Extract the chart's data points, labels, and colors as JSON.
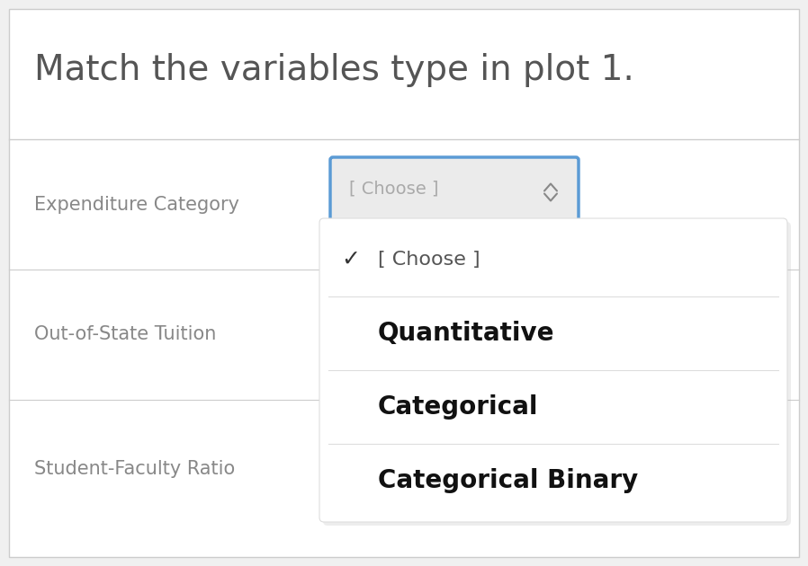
{
  "title": "Match the variables type in plot 1.",
  "title_color": "#555555",
  "title_fontsize": 28,
  "background_color": "#f0f0f0",
  "main_bg": "#ffffff",
  "rows": [
    {
      "label": "Expenditure Category",
      "has_dropdown": true,
      "dropdown_text": "[ Choose ]"
    },
    {
      "label": "Out-of-State Tuition",
      "has_dropdown": false
    },
    {
      "label": "Student-Faculty Ratio",
      "has_dropdown": false
    }
  ],
  "row_label_color": "#888888",
  "row_label_fontsize": 15,
  "dropdown_bg_color": "#ebebeb",
  "dropdown_border_color": "#5b9bd5",
  "dropdown_text_color": "#aaaaaa",
  "dropdown_arrow_color": "#888888",
  "dropdown_menu": {
    "bg_color": "#ffffff",
    "items": [
      {
        "text": "[ Choose ]",
        "bold": false,
        "has_check": true
      },
      {
        "text": "Quantitative",
        "bold": true,
        "has_check": false
      },
      {
        "text": "Categorical",
        "bold": true,
        "has_check": false
      },
      {
        "text": "Categorical Binary",
        "bold": true,
        "has_check": false
      }
    ],
    "item_text_color": "#111111",
    "check_item_color": "#555555",
    "divider_color": "#dddddd",
    "check_color": "#333333"
  },
  "divider_color": "#cccccc",
  "outer_border_color": "#cccccc"
}
